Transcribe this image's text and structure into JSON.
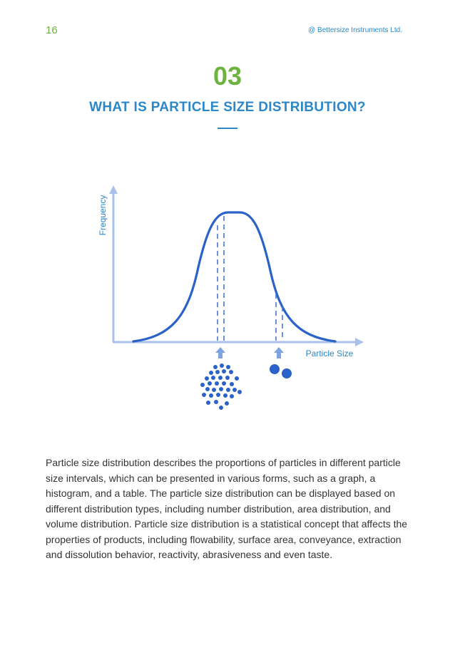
{
  "header": {
    "page_number": "16",
    "company": "@ Bettersize Instruments Ltd."
  },
  "section": {
    "number": "03",
    "title": "WHAT IS PARTICLE SIZE DISTRIBUTION?"
  },
  "figure": {
    "y_axis_label": "Frequency",
    "x_axis_label": "Particle Size",
    "small_particles_count": 30,
    "large_particles_count": 2
  },
  "body": {
    "paragraph": "Particle size distribution describes the proportions of particles in different particle size intervals, which can be presented in various forms, such as a graph, a histogram, and a table. The particle size distribution can be displayed based on different distribution types, including number distribution, area distribution, and volume distribution. Particle size distribution is a statistical concept that affects the properties of products, including flowability, surface area, conveyance, extraction and dissolution behavior, reactivity, abrasiveness and even taste."
  },
  "colors": {
    "green": "#6cb33f",
    "blue": "#2b87c8",
    "curve": "#2a62c9",
    "axis": "#a9c1ea",
    "text": "#333333"
  }
}
